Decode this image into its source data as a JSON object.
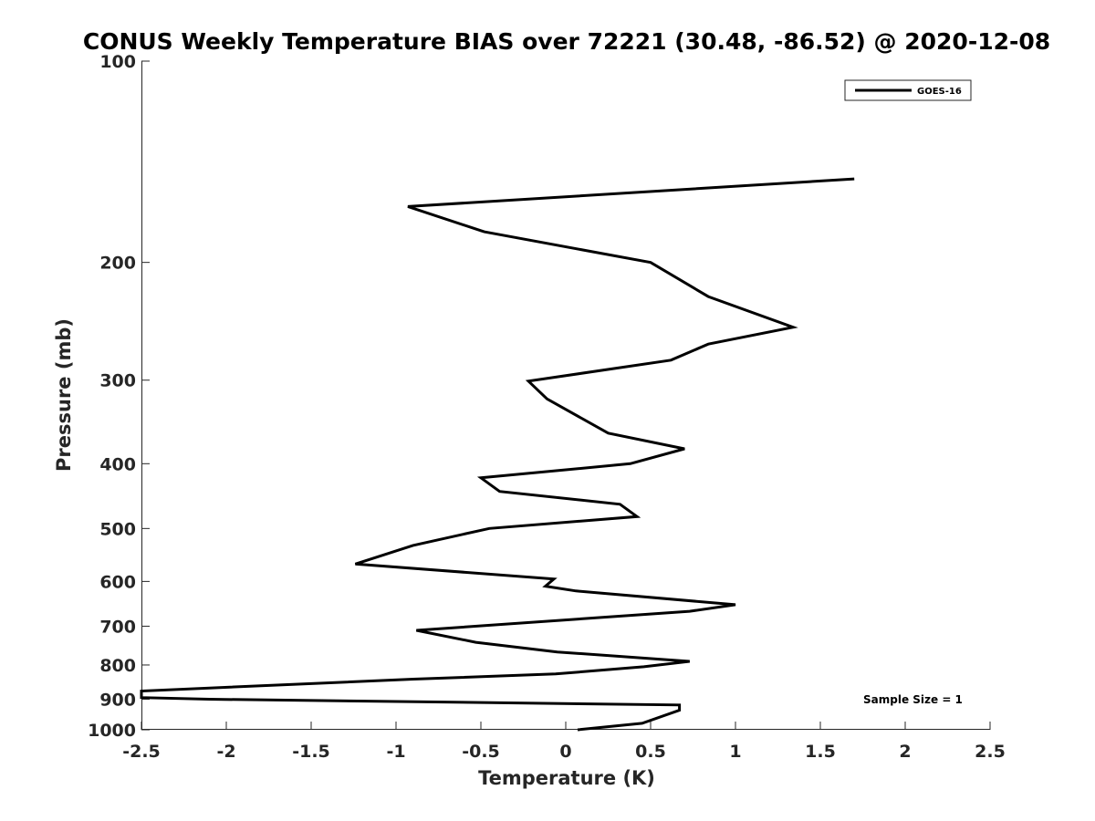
{
  "chart_data": {
    "type": "line",
    "title": "CONUS Weekly Temperature BIAS over 72221 (30.48, -86.52) @ 2020-12-08",
    "xlabel": "Temperature (K)",
    "ylabel": "Pressure (mb)",
    "xlim": [
      -2.5,
      2.5
    ],
    "ylim": [
      100,
      1000
    ],
    "y_scale": "log",
    "y_direction": "reversed",
    "x_ticks": [
      -2.5,
      -2,
      -1.5,
      -1,
      -0.5,
      0,
      0.5,
      1,
      1.5,
      2,
      2.5
    ],
    "x_tick_labels": [
      "-2.5",
      "-2",
      "-1.5",
      "-1",
      "-0.5",
      "0",
      "0.5",
      "1",
      "1.5",
      "2",
      "2.5"
    ],
    "y_ticks": [
      100,
      200,
      300,
      400,
      500,
      600,
      700,
      800,
      900,
      1000
    ],
    "y_tick_labels": [
      "100",
      "200",
      "300",
      "400",
      "500",
      "600",
      "700",
      "800",
      "900",
      "1000"
    ],
    "grid": false,
    "legend_position": "top-right",
    "line_color": "#000000",
    "series": [
      {
        "name": "GOES-16",
        "points": [
          {
            "x": 1.7,
            "p": 150
          },
          {
            "x": -0.93,
            "p": 165
          },
          {
            "x": -0.48,
            "p": 180
          },
          {
            "x": 0.5,
            "p": 200
          },
          {
            "x": 0.84,
            "p": 225
          },
          {
            "x": 1.34,
            "p": 250
          },
          {
            "x": 0.84,
            "p": 265
          },
          {
            "x": 0.62,
            "p": 280
          },
          {
            "x": -0.22,
            "p": 301
          },
          {
            "x": -0.11,
            "p": 320
          },
          {
            "x": 0.25,
            "p": 360
          },
          {
            "x": 0.7,
            "p": 380
          },
          {
            "x": 0.38,
            "p": 400
          },
          {
            "x": -0.5,
            "p": 420
          },
          {
            "x": -0.39,
            "p": 440
          },
          {
            "x": 0.32,
            "p": 460
          },
          {
            "x": 0.42,
            "p": 480
          },
          {
            "x": -0.45,
            "p": 500
          },
          {
            "x": -0.9,
            "p": 530
          },
          {
            "x": -1.24,
            "p": 565
          },
          {
            "x": -0.07,
            "p": 595
          },
          {
            "x": -0.12,
            "p": 610
          },
          {
            "x": 0.06,
            "p": 620
          },
          {
            "x": 1.0,
            "p": 650
          },
          {
            "x": 0.73,
            "p": 665
          },
          {
            "x": -0.88,
            "p": 710
          },
          {
            "x": -0.53,
            "p": 740
          },
          {
            "x": -0.05,
            "p": 765
          },
          {
            "x": 0.73,
            "p": 790
          },
          {
            "x": 0.46,
            "p": 805
          },
          {
            "x": -0.06,
            "p": 825
          },
          {
            "x": -0.9,
            "p": 840
          },
          {
            "x": -2.5,
            "p": 875
          },
          {
            "x": -2.5,
            "p": 895
          },
          {
            "x": -2.1,
            "p": 900
          },
          {
            "x": 0.67,
            "p": 918
          },
          {
            "x": 0.67,
            "p": 935
          },
          {
            "x": 0.45,
            "p": 978
          },
          {
            "x": 0.07,
            "p": 1000
          }
        ]
      }
    ],
    "annotations": [
      {
        "text": "Sample Size = 1",
        "position": "bottom-right"
      }
    ]
  }
}
